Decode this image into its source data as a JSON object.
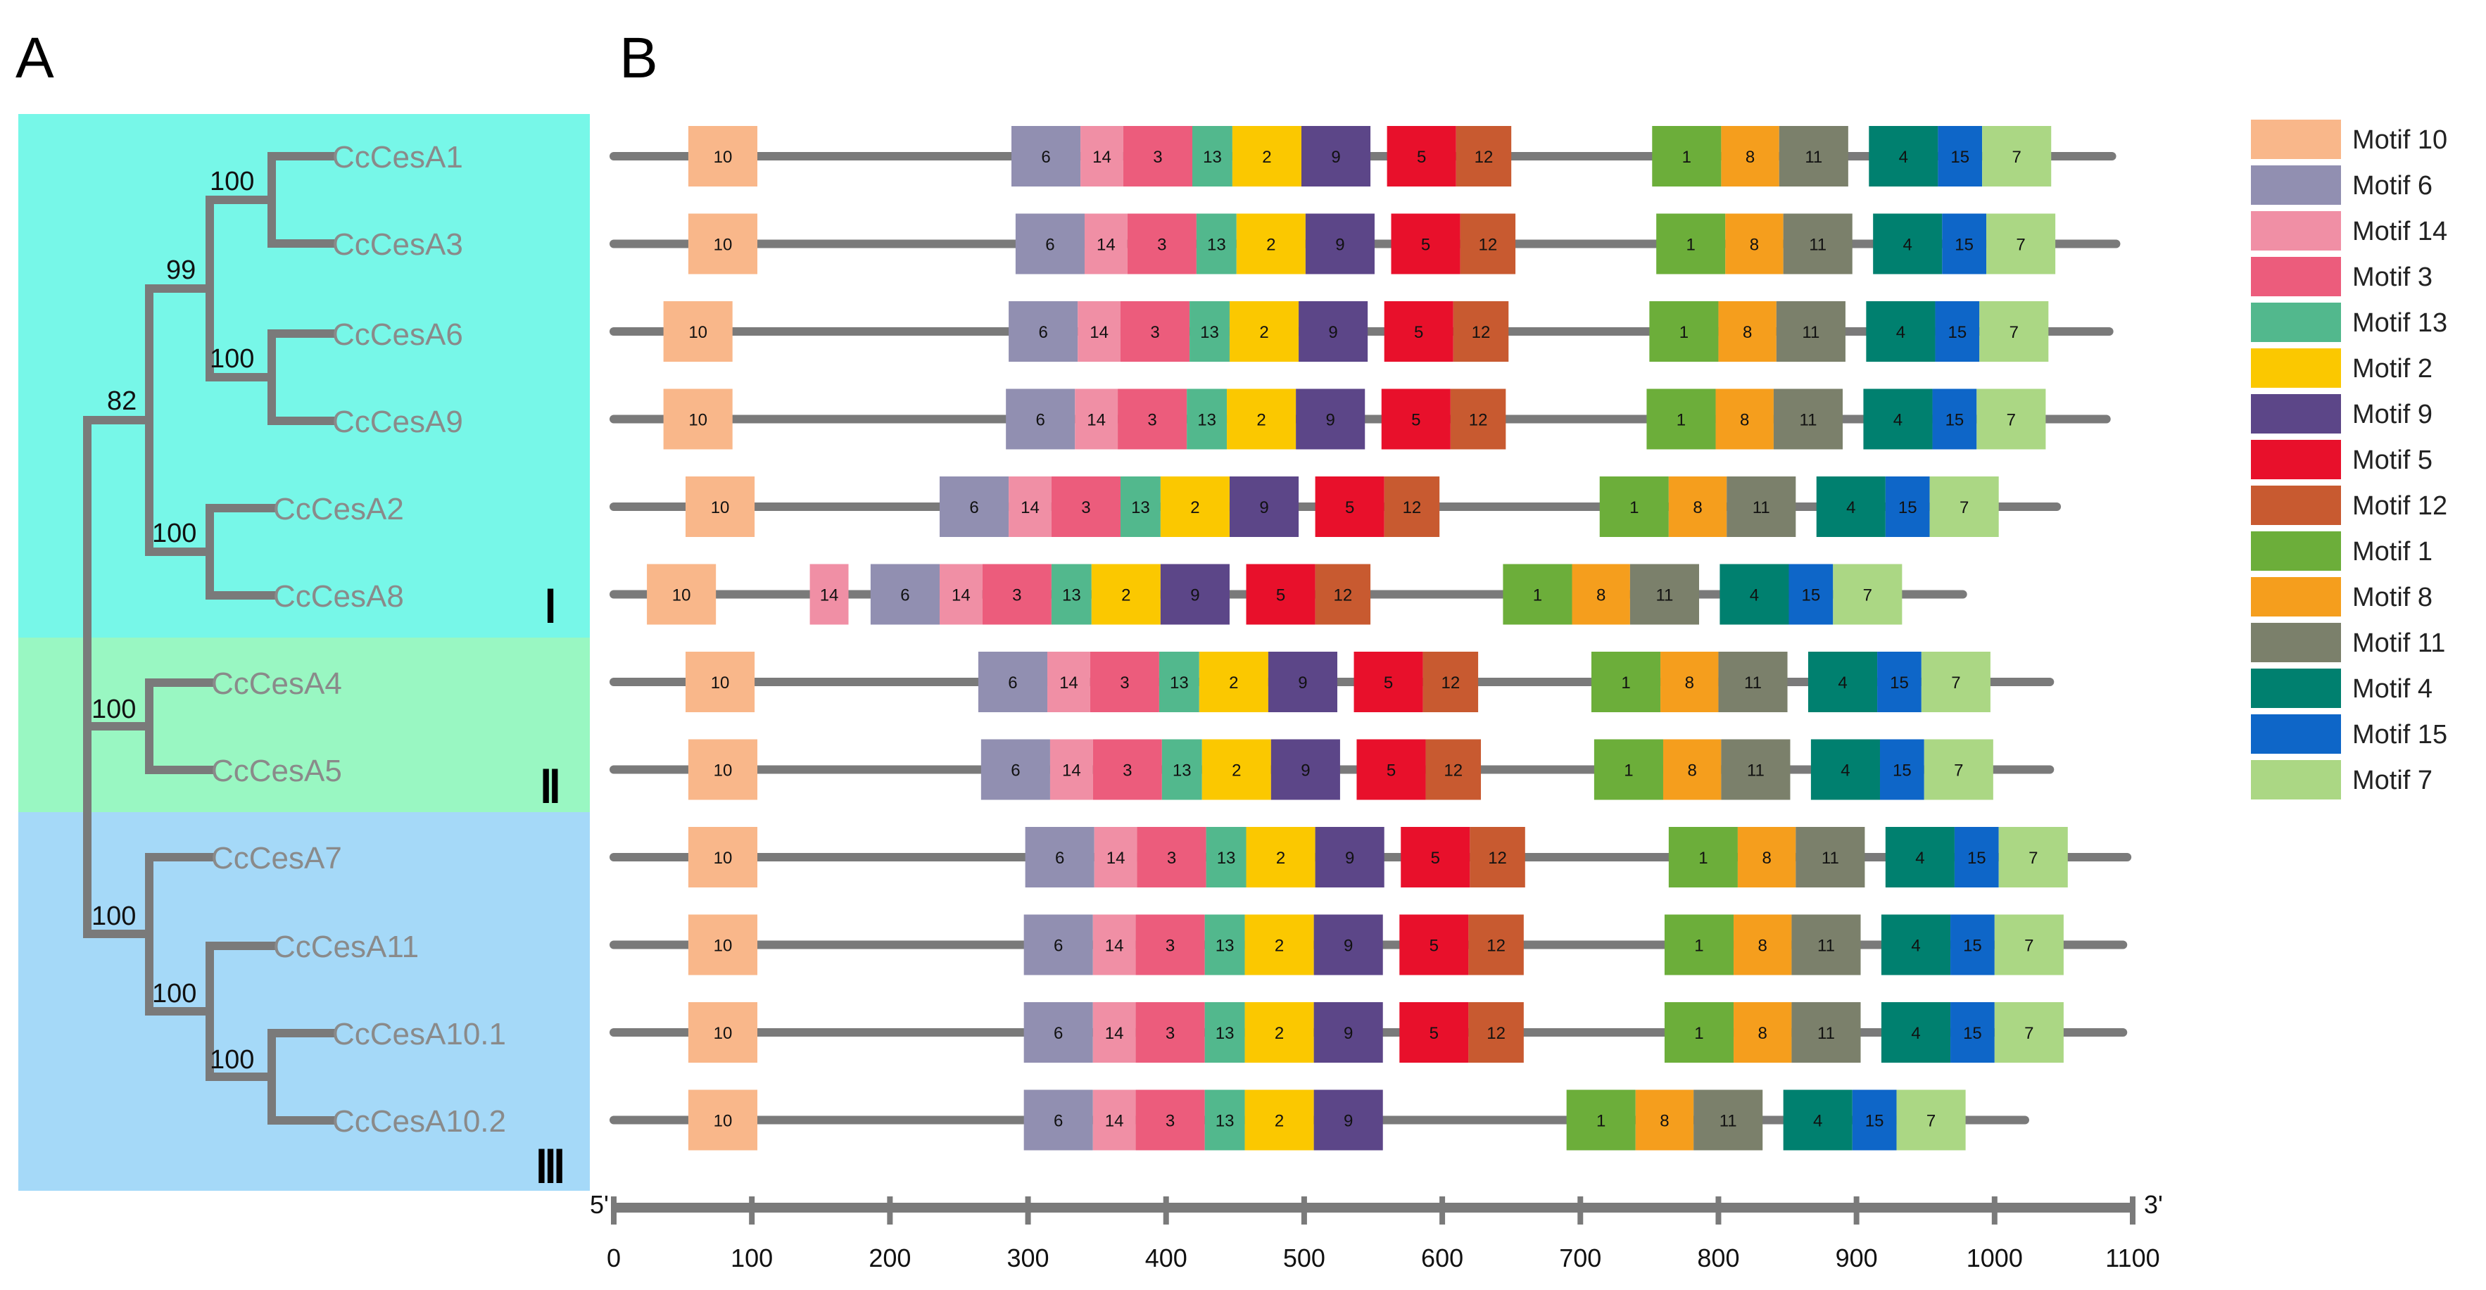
{
  "panels": {
    "a": "A",
    "b": "B"
  },
  "clade_colors": {
    "I": "#77f7e8",
    "II": "#99f7c2",
    "III": "#a5d9f8"
  },
  "clades": [
    {
      "label": "Ⅰ",
      "key": "I"
    },
    {
      "label": "Ⅱ",
      "key": "II"
    },
    {
      "label": "Ⅲ",
      "key": "III"
    }
  ],
  "taxa": [
    "CcCesA1",
    "CcCesA3",
    "CcCesA6",
    "CcCesA9",
    "CcCesA2",
    "CcCesA8",
    "CcCesA4",
    "CcCesA5",
    "CcCesA7",
    "CcCesA11",
    "CcCesA10.1",
    "CcCesA10.2"
  ],
  "bootstrap": [
    "100",
    "99",
    "100",
    "82",
    "100",
    "100",
    "100",
    "100",
    "100"
  ],
  "motif_colors": {
    "1": "#6cae3a",
    "2": "#fbc800",
    "3": "#ec5c7c",
    "4": "#00806f",
    "5": "#e8102b",
    "6": "#918fb1",
    "7": "#abd784",
    "8": "#f59e1d",
    "9": "#5c4688",
    "10": "#f9b78a",
    "11": "#7b806b",
    "12": "#c85a30",
    "13": "#52b88d",
    "14": "#f08fa5",
    "15": "#0e66c8"
  },
  "legend": [
    {
      "motif": "10",
      "label": "Motif 10"
    },
    {
      "motif": "6",
      "label": "Motif 6"
    },
    {
      "motif": "14",
      "label": "Motif 14"
    },
    {
      "motif": "3",
      "label": "Motif 3"
    },
    {
      "motif": "13",
      "label": "Motif 13"
    },
    {
      "motif": "2",
      "label": "Motif 2"
    },
    {
      "motif": "9",
      "label": "Motif 9"
    },
    {
      "motif": "5",
      "label": "Motif 5"
    },
    {
      "motif": "12",
      "label": "Motif 12"
    },
    {
      "motif": "1",
      "label": "Motif 1"
    },
    {
      "motif": "8",
      "label": "Motif 8"
    },
    {
      "motif": "11",
      "label": "Motif 11"
    },
    {
      "motif": "4",
      "label": "Motif 4"
    },
    {
      "motif": "15",
      "label": "Motif 15"
    },
    {
      "motif": "7",
      "label": "Motif 7"
    }
  ],
  "axis": {
    "start_label": "5'",
    "end_label": "3'",
    "ticks": [
      0,
      100,
      200,
      300,
      400,
      500,
      600,
      700,
      800,
      900,
      1000,
      1100
    ],
    "max": 1100
  },
  "proteins": [
    {
      "name": "CcCesA1",
      "length": 1085,
      "motifs": [
        {
          "id": "10",
          "start": 54,
          "end": 104
        },
        {
          "id": "6",
          "start": 288,
          "end": 338
        },
        {
          "id": "14",
          "start": 338,
          "end": 369
        },
        {
          "id": "3",
          "start": 369,
          "end": 419
        },
        {
          "id": "13",
          "start": 419,
          "end": 448
        },
        {
          "id": "2",
          "start": 448,
          "end": 498
        },
        {
          "id": "9",
          "start": 498,
          "end": 548
        },
        {
          "id": "5",
          "start": 560,
          "end": 610
        },
        {
          "id": "12",
          "start": 610,
          "end": 650
        },
        {
          "id": "1",
          "start": 752,
          "end": 802
        },
        {
          "id": "8",
          "start": 802,
          "end": 844
        },
        {
          "id": "11",
          "start": 844,
          "end": 894
        },
        {
          "id": "4",
          "start": 909,
          "end": 959
        },
        {
          "id": "15",
          "start": 959,
          "end": 991
        },
        {
          "id": "7",
          "start": 991,
          "end": 1041
        }
      ]
    },
    {
      "name": "CcCesA3",
      "length": 1088,
      "motifs": [
        {
          "id": "10",
          "start": 54,
          "end": 104
        },
        {
          "id": "6",
          "start": 291,
          "end": 341
        },
        {
          "id": "14",
          "start": 341,
          "end": 372
        },
        {
          "id": "3",
          "start": 372,
          "end": 422
        },
        {
          "id": "13",
          "start": 422,
          "end": 451
        },
        {
          "id": "2",
          "start": 451,
          "end": 501
        },
        {
          "id": "9",
          "start": 501,
          "end": 551
        },
        {
          "id": "5",
          "start": 563,
          "end": 613
        },
        {
          "id": "12",
          "start": 613,
          "end": 653
        },
        {
          "id": "1",
          "start": 755,
          "end": 805
        },
        {
          "id": "8",
          "start": 805,
          "end": 847
        },
        {
          "id": "11",
          "start": 847,
          "end": 897
        },
        {
          "id": "4",
          "start": 912,
          "end": 962
        },
        {
          "id": "15",
          "start": 962,
          "end": 994
        },
        {
          "id": "7",
          "start": 994,
          "end": 1044
        }
      ]
    },
    {
      "name": "CcCesA6",
      "length": 1083,
      "motifs": [
        {
          "id": "10",
          "start": 36,
          "end": 86
        },
        {
          "id": "6",
          "start": 286,
          "end": 336
        },
        {
          "id": "14",
          "start": 336,
          "end": 367
        },
        {
          "id": "3",
          "start": 367,
          "end": 417
        },
        {
          "id": "13",
          "start": 417,
          "end": 446
        },
        {
          "id": "2",
          "start": 446,
          "end": 496
        },
        {
          "id": "9",
          "start": 496,
          "end": 546
        },
        {
          "id": "5",
          "start": 558,
          "end": 608
        },
        {
          "id": "12",
          "start": 608,
          "end": 648
        },
        {
          "id": "1",
          "start": 750,
          "end": 800
        },
        {
          "id": "8",
          "start": 800,
          "end": 842
        },
        {
          "id": "11",
          "start": 842,
          "end": 892
        },
        {
          "id": "4",
          "start": 907,
          "end": 957
        },
        {
          "id": "15",
          "start": 957,
          "end": 989
        },
        {
          "id": "7",
          "start": 989,
          "end": 1039
        }
      ]
    },
    {
      "name": "CcCesA9",
      "length": 1081,
      "motifs": [
        {
          "id": "10",
          "start": 36,
          "end": 86
        },
        {
          "id": "6",
          "start": 284,
          "end": 334
        },
        {
          "id": "14",
          "start": 334,
          "end": 365
        },
        {
          "id": "3",
          "start": 365,
          "end": 415
        },
        {
          "id": "13",
          "start": 415,
          "end": 444
        },
        {
          "id": "2",
          "start": 444,
          "end": 494
        },
        {
          "id": "9",
          "start": 494,
          "end": 544
        },
        {
          "id": "5",
          "start": 556,
          "end": 606
        },
        {
          "id": "12",
          "start": 606,
          "end": 646
        },
        {
          "id": "1",
          "start": 748,
          "end": 798
        },
        {
          "id": "8",
          "start": 798,
          "end": 840
        },
        {
          "id": "11",
          "start": 840,
          "end": 890
        },
        {
          "id": "4",
          "start": 905,
          "end": 955
        },
        {
          "id": "15",
          "start": 955,
          "end": 987
        },
        {
          "id": "7",
          "start": 987,
          "end": 1037
        }
      ]
    },
    {
      "name": "CcCesA2",
      "length": 1045,
      "motifs": [
        {
          "id": "10",
          "start": 52,
          "end": 102
        },
        {
          "id": "6",
          "start": 236,
          "end": 286
        },
        {
          "id": "14",
          "start": 286,
          "end": 317
        },
        {
          "id": "3",
          "start": 317,
          "end": 367
        },
        {
          "id": "13",
          "start": 367,
          "end": 396
        },
        {
          "id": "2",
          "start": 396,
          "end": 446
        },
        {
          "id": "9",
          "start": 446,
          "end": 496
        },
        {
          "id": "5",
          "start": 508,
          "end": 558
        },
        {
          "id": "12",
          "start": 558,
          "end": 598
        },
        {
          "id": "1",
          "start": 714,
          "end": 764
        },
        {
          "id": "8",
          "start": 764,
          "end": 806
        },
        {
          "id": "11",
          "start": 806,
          "end": 856
        },
        {
          "id": "4",
          "start": 871,
          "end": 921
        },
        {
          "id": "15",
          "start": 921,
          "end": 953
        },
        {
          "id": "7",
          "start": 953,
          "end": 1003
        }
      ]
    },
    {
      "name": "CcCesA8",
      "length": 977,
      "motifs": [
        {
          "id": "10",
          "start": 24,
          "end": 74
        },
        {
          "id": "14",
          "start": 142,
          "end": 170
        },
        {
          "id": "6",
          "start": 186,
          "end": 236
        },
        {
          "id": "14",
          "start": 236,
          "end": 267
        },
        {
          "id": "3",
          "start": 267,
          "end": 317
        },
        {
          "id": "13",
          "start": 317,
          "end": 346
        },
        {
          "id": "2",
          "start": 346,
          "end": 396
        },
        {
          "id": "9",
          "start": 396,
          "end": 446
        },
        {
          "id": "5",
          "start": 458,
          "end": 508
        },
        {
          "id": "12",
          "start": 508,
          "end": 548
        },
        {
          "id": "1",
          "start": 644,
          "end": 694
        },
        {
          "id": "8",
          "start": 694,
          "end": 736
        },
        {
          "id": "11",
          "start": 736,
          "end": 786
        },
        {
          "id": "4",
          "start": 801,
          "end": 851
        },
        {
          "id": "15",
          "start": 851,
          "end": 883
        },
        {
          "id": "7",
          "start": 883,
          "end": 933
        }
      ]
    },
    {
      "name": "CcCesA4",
      "length": 1040,
      "motifs": [
        {
          "id": "10",
          "start": 52,
          "end": 102
        },
        {
          "id": "6",
          "start": 264,
          "end": 314
        },
        {
          "id": "14",
          "start": 314,
          "end": 345
        },
        {
          "id": "3",
          "start": 345,
          "end": 395
        },
        {
          "id": "13",
          "start": 395,
          "end": 424
        },
        {
          "id": "2",
          "start": 424,
          "end": 474
        },
        {
          "id": "9",
          "start": 474,
          "end": 524
        },
        {
          "id": "5",
          "start": 536,
          "end": 586
        },
        {
          "id": "12",
          "start": 586,
          "end": 626
        },
        {
          "id": "1",
          "start": 708,
          "end": 758
        },
        {
          "id": "8",
          "start": 758,
          "end": 800
        },
        {
          "id": "11",
          "start": 800,
          "end": 850
        },
        {
          "id": "4",
          "start": 865,
          "end": 915
        },
        {
          "id": "15",
          "start": 915,
          "end": 947
        },
        {
          "id": "7",
          "start": 947,
          "end": 997
        }
      ]
    },
    {
      "name": "CcCesA5",
      "length": 1040,
      "motifs": [
        {
          "id": "10",
          "start": 54,
          "end": 104
        },
        {
          "id": "6",
          "start": 266,
          "end": 316
        },
        {
          "id": "14",
          "start": 316,
          "end": 347
        },
        {
          "id": "3",
          "start": 347,
          "end": 397
        },
        {
          "id": "13",
          "start": 397,
          "end": 426
        },
        {
          "id": "2",
          "start": 426,
          "end": 476
        },
        {
          "id": "9",
          "start": 476,
          "end": 526
        },
        {
          "id": "5",
          "start": 538,
          "end": 588
        },
        {
          "id": "12",
          "start": 588,
          "end": 628
        },
        {
          "id": "1",
          "start": 710,
          "end": 760
        },
        {
          "id": "8",
          "start": 760,
          "end": 802
        },
        {
          "id": "11",
          "start": 802,
          "end": 852
        },
        {
          "id": "4",
          "start": 867,
          "end": 917
        },
        {
          "id": "15",
          "start": 917,
          "end": 949
        },
        {
          "id": "7",
          "start": 949,
          "end": 999
        }
      ]
    },
    {
      "name": "CcCesA7",
      "length": 1096,
      "motifs": [
        {
          "id": "10",
          "start": 54,
          "end": 104
        },
        {
          "id": "6",
          "start": 298,
          "end": 348
        },
        {
          "id": "14",
          "start": 348,
          "end": 379
        },
        {
          "id": "3",
          "start": 379,
          "end": 429
        },
        {
          "id": "13",
          "start": 429,
          "end": 458
        },
        {
          "id": "2",
          "start": 458,
          "end": 508
        },
        {
          "id": "9",
          "start": 508,
          "end": 558
        },
        {
          "id": "5",
          "start": 570,
          "end": 620
        },
        {
          "id": "12",
          "start": 620,
          "end": 660
        },
        {
          "id": "1",
          "start": 764,
          "end": 814
        },
        {
          "id": "8",
          "start": 814,
          "end": 856
        },
        {
          "id": "11",
          "start": 856,
          "end": 906
        },
        {
          "id": "4",
          "start": 921,
          "end": 971
        },
        {
          "id": "15",
          "start": 971,
          "end": 1003
        },
        {
          "id": "7",
          "start": 1003,
          "end": 1053
        }
      ]
    },
    {
      "name": "CcCesA11",
      "length": 1093,
      "motifs": [
        {
          "id": "10",
          "start": 54,
          "end": 104
        },
        {
          "id": "6",
          "start": 297,
          "end": 347
        },
        {
          "id": "14",
          "start": 347,
          "end": 378
        },
        {
          "id": "3",
          "start": 378,
          "end": 428
        },
        {
          "id": "13",
          "start": 428,
          "end": 457
        },
        {
          "id": "2",
          "start": 457,
          "end": 507
        },
        {
          "id": "9",
          "start": 507,
          "end": 557
        },
        {
          "id": "5",
          "start": 569,
          "end": 619
        },
        {
          "id": "12",
          "start": 619,
          "end": 659
        },
        {
          "id": "1",
          "start": 761,
          "end": 811
        },
        {
          "id": "8",
          "start": 811,
          "end": 853
        },
        {
          "id": "11",
          "start": 853,
          "end": 903
        },
        {
          "id": "4",
          "start": 918,
          "end": 968
        },
        {
          "id": "15",
          "start": 968,
          "end": 1000
        },
        {
          "id": "7",
          "start": 1000,
          "end": 1050
        }
      ]
    },
    {
      "name": "CcCesA10.1",
      "length": 1093,
      "motifs": [
        {
          "id": "10",
          "start": 54,
          "end": 104
        },
        {
          "id": "6",
          "start": 297,
          "end": 347
        },
        {
          "id": "14",
          "start": 347,
          "end": 378
        },
        {
          "id": "3",
          "start": 378,
          "end": 428
        },
        {
          "id": "13",
          "start": 428,
          "end": 457
        },
        {
          "id": "2",
          "start": 457,
          "end": 507
        },
        {
          "id": "9",
          "start": 507,
          "end": 557
        },
        {
          "id": "5",
          "start": 569,
          "end": 619
        },
        {
          "id": "12",
          "start": 619,
          "end": 659
        },
        {
          "id": "1",
          "start": 761,
          "end": 811
        },
        {
          "id": "8",
          "start": 811,
          "end": 853
        },
        {
          "id": "11",
          "start": 853,
          "end": 903
        },
        {
          "id": "4",
          "start": 918,
          "end": 968
        },
        {
          "id": "15",
          "start": 968,
          "end": 1000
        },
        {
          "id": "7",
          "start": 1000,
          "end": 1050
        }
      ]
    },
    {
      "name": "CcCesA10.2",
      "length": 1022,
      "motifs": [
        {
          "id": "10",
          "start": 54,
          "end": 104
        },
        {
          "id": "6",
          "start": 297,
          "end": 347
        },
        {
          "id": "14",
          "start": 347,
          "end": 378
        },
        {
          "id": "3",
          "start": 378,
          "end": 428
        },
        {
          "id": "13",
          "start": 428,
          "end": 457
        },
        {
          "id": "2",
          "start": 457,
          "end": 507
        },
        {
          "id": "9",
          "start": 507,
          "end": 557
        },
        {
          "id": "1",
          "start": 690,
          "end": 740
        },
        {
          "id": "8",
          "start": 740,
          "end": 782
        },
        {
          "id": "11",
          "start": 782,
          "end": 832
        },
        {
          "id": "4",
          "start": 847,
          "end": 897
        },
        {
          "id": "15",
          "start": 897,
          "end": 929
        },
        {
          "id": "7",
          "start": 929,
          "end": 979
        }
      ]
    }
  ]
}
